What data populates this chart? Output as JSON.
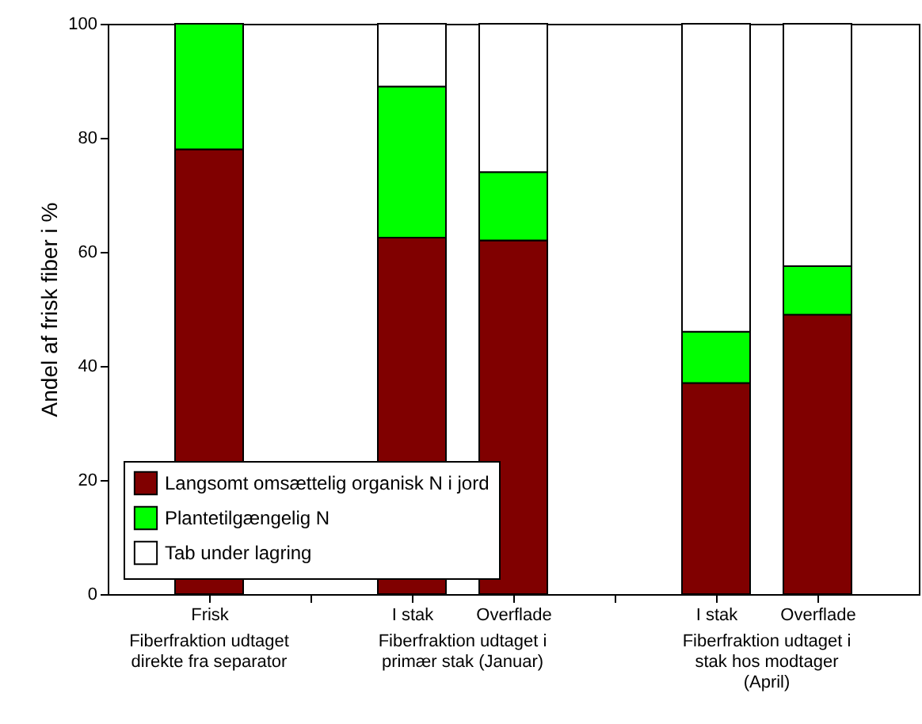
{
  "chart_data": {
    "type": "bar",
    "stacked": true,
    "ylabel": "Andel af frisk fiber i %",
    "categories": [
      "Frisk",
      null,
      "I stak",
      "Overflade",
      null,
      "I stak",
      "Overflade"
    ],
    "series": [
      {
        "name": "Langsomt omsættelig organisk N i jord",
        "color": "#800000",
        "values": [
          78,
          null,
          62.5,
          62,
          null,
          37,
          49
        ]
      },
      {
        "name": "Plantetilgængelig N",
        "color": "#00ff00",
        "values": [
          22,
          null,
          26.5,
          12,
          null,
          9,
          8.5
        ]
      },
      {
        "name": "Tab under lagring",
        "color": "#ffffff",
        "values": [
          null,
          null,
          11,
          26,
          null,
          54,
          42.5
        ]
      }
    ],
    "ylim": [
      0,
      100
    ],
    "yticks": [
      0,
      20,
      40,
      60,
      80,
      100
    ],
    "grid": false,
    "legend": "bottom left",
    "annotations": [
      "Fiberfraktion udtaget direkte fra separator",
      "Fiberfraktion udtaget i primær stak (Januar)",
      "Fiberfraktion udtaget i stak hos modtager (April)"
    ]
  }
}
